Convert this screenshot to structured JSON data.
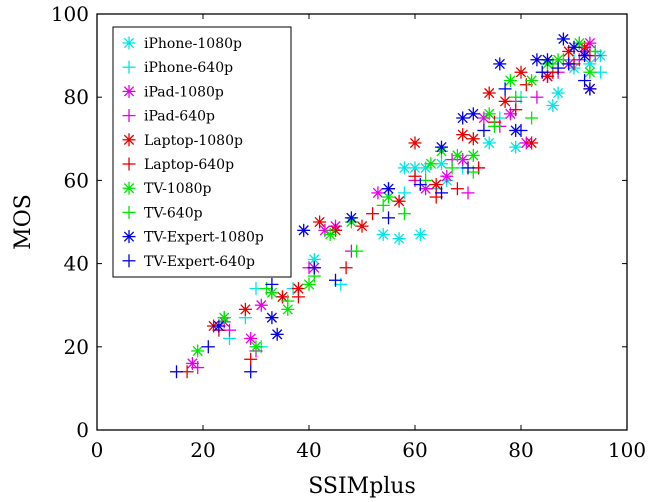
{
  "chart_data": {
    "type": "scatter",
    "title": "",
    "xlabel": "SSIMplus",
    "ylabel": "MOS",
    "xlim": [
      0,
      100
    ],
    "ylim": [
      0,
      100
    ],
    "x_ticks": [
      "0",
      "20",
      "40",
      "60",
      "80",
      "100"
    ],
    "y_ticks": [
      "0",
      "20",
      "40",
      "60",
      "80",
      "100"
    ],
    "grid": false,
    "legend_position": "top-left",
    "series": [
      {
        "name": "iPhone-1080p",
        "color": "#00e5e5",
        "marker": "asterisk",
        "points": [
          [
            41,
            41
          ],
          [
            58,
            63
          ],
          [
            60,
            63
          ],
          [
            62,
            63
          ],
          [
            54,
            47
          ],
          [
            57,
            46
          ],
          [
            61,
            47
          ],
          [
            65,
            64
          ],
          [
            74,
            69
          ],
          [
            79,
            68
          ],
          [
            86,
            78
          ],
          [
            87,
            81
          ],
          [
            90,
            87
          ],
          [
            93,
            88
          ],
          [
            95,
            90
          ],
          [
            66,
            60
          ]
        ]
      },
      {
        "name": "iPhone-640p",
        "color": "#00e5e5",
        "marker": "plus",
        "points": [
          [
            25,
            22
          ],
          [
            28,
            27
          ],
          [
            30,
            34
          ],
          [
            31,
            20
          ],
          [
            37,
            34
          ],
          [
            46,
            35
          ],
          [
            58,
            57
          ],
          [
            64,
            58
          ],
          [
            69,
            63
          ],
          [
            76,
            75
          ],
          [
            80,
            80
          ],
          [
            85,
            86
          ],
          [
            90,
            89
          ],
          [
            94,
            91
          ],
          [
            95,
            86
          ]
        ]
      },
      {
        "name": "iPad-1080p",
        "color": "#e600e6",
        "marker": "asterisk",
        "points": [
          [
            18,
            16
          ],
          [
            24,
            26
          ],
          [
            29,
            22
          ],
          [
            31,
            30
          ],
          [
            41,
            39
          ],
          [
            43,
            48
          ],
          [
            45,
            49
          ],
          [
            53,
            57
          ],
          [
            62,
            58
          ],
          [
            66,
            61
          ],
          [
            69,
            65
          ],
          [
            73,
            75
          ],
          [
            78,
            76
          ],
          [
            81,
            69
          ],
          [
            85,
            85
          ],
          [
            89,
            88
          ],
          [
            92,
            91
          ],
          [
            93,
            93
          ]
        ]
      },
      {
        "name": "iPad-640p",
        "color": "#e600e6",
        "marker": "plus",
        "points": [
          [
            19,
            15
          ],
          [
            25,
            24
          ],
          [
            30,
            19
          ],
          [
            35,
            32
          ],
          [
            40,
            39
          ],
          [
            48,
            43
          ],
          [
            55,
            58
          ],
          [
            60,
            60
          ],
          [
            67,
            65
          ],
          [
            70,
            57
          ],
          [
            72,
            63
          ],
          [
            76,
            73
          ],
          [
            79,
            79
          ],
          [
            83,
            80
          ],
          [
            87,
            86
          ],
          [
            91,
            89
          ],
          [
            94,
            90
          ]
        ]
      },
      {
        "name": "Laptop-1080p",
        "color": "#e60000",
        "marker": "asterisk",
        "points": [
          [
            22,
            25
          ],
          [
            28,
            29
          ],
          [
            35,
            32
          ],
          [
            38,
            34
          ],
          [
            42,
            50
          ],
          [
            45,
            48
          ],
          [
            50,
            49
          ],
          [
            57,
            55
          ],
          [
            60,
            69
          ],
          [
            64,
            59
          ],
          [
            69,
            71
          ],
          [
            71,
            70
          ],
          [
            74,
            81
          ],
          [
            77,
            79
          ],
          [
            80,
            86
          ],
          [
            82,
            69
          ],
          [
            85,
            85
          ],
          [
            89,
            91
          ],
          [
            92,
            92
          ],
          [
            93,
            82
          ]
        ]
      },
      {
        "name": "Laptop-640p",
        "color": "#e60000",
        "marker": "plus",
        "points": [
          [
            17,
            14
          ],
          [
            23,
            24
          ],
          [
            29,
            17
          ],
          [
            33,
            33
          ],
          [
            38,
            32
          ],
          [
            47,
            39
          ],
          [
            52,
            52
          ],
          [
            60,
            61
          ],
          [
            64,
            56
          ],
          [
            68,
            58
          ],
          [
            72,
            63
          ],
          [
            75,
            74
          ],
          [
            79,
            77
          ],
          [
            81,
            83
          ],
          [
            86,
            86
          ],
          [
            90,
            88
          ],
          [
            93,
            90
          ]
        ]
      },
      {
        "name": "TV-1080p",
        "color": "#00e600",
        "marker": "asterisk",
        "points": [
          [
            19,
            19
          ],
          [
            24,
            27
          ],
          [
            30,
            20
          ],
          [
            33,
            33
          ],
          [
            36,
            29
          ],
          [
            40,
            35
          ],
          [
            44,
            47
          ],
          [
            48,
            50
          ],
          [
            55,
            56
          ],
          [
            63,
            64
          ],
          [
            65,
            67
          ],
          [
            68,
            66
          ],
          [
            71,
            66
          ],
          [
            74,
            76
          ],
          [
            78,
            84
          ],
          [
            82,
            84
          ],
          [
            85,
            88
          ],
          [
            87,
            89
          ],
          [
            91,
            93
          ],
          [
            93,
            86
          ]
        ]
      },
      {
        "name": "TV-640p",
        "color": "#00e600",
        "marker": "plus",
        "points": [
          [
            24,
            27
          ],
          [
            32,
            34
          ],
          [
            36,
            31
          ],
          [
            41,
            37
          ],
          [
            49,
            43
          ],
          [
            54,
            54
          ],
          [
            58,
            52
          ],
          [
            62,
            60
          ],
          [
            67,
            63
          ],
          [
            71,
            62
          ],
          [
            75,
            73
          ],
          [
            79,
            80
          ],
          [
            82,
            75
          ],
          [
            86,
            88
          ],
          [
            88,
            89
          ],
          [
            91,
            93
          ],
          [
            94,
            91
          ]
        ]
      },
      {
        "name": "TV-Expert-1080p",
        "color": "#0000e6",
        "marker": "asterisk",
        "points": [
          [
            23,
            25
          ],
          [
            33,
            27
          ],
          [
            34,
            23
          ],
          [
            39,
            48
          ],
          [
            48,
            51
          ],
          [
            55,
            58
          ],
          [
            65,
            68
          ],
          [
            69,
            75
          ],
          [
            71,
            76
          ],
          [
            76,
            88
          ],
          [
            79,
            72
          ],
          [
            83,
            89
          ],
          [
            85,
            89
          ],
          [
            88,
            94
          ],
          [
            90,
            92
          ],
          [
            92,
            90
          ],
          [
            93,
            82
          ]
        ]
      },
      {
        "name": "TV-Expert-640p",
        "color": "#0000e6",
        "marker": "plus",
        "points": [
          [
            15,
            14
          ],
          [
            21,
            20
          ],
          [
            29,
            14
          ],
          [
            33,
            35
          ],
          [
            41,
            39
          ],
          [
            45,
            36
          ],
          [
            55,
            51
          ],
          [
            61,
            59
          ],
          [
            65,
            57
          ],
          [
            70,
            63
          ],
          [
            73,
            72
          ],
          [
            77,
            82
          ],
          [
            80,
            72
          ],
          [
            84,
            86
          ],
          [
            87,
            87
          ],
          [
            89,
            88
          ],
          [
            92,
            84
          ]
        ]
      }
    ]
  }
}
